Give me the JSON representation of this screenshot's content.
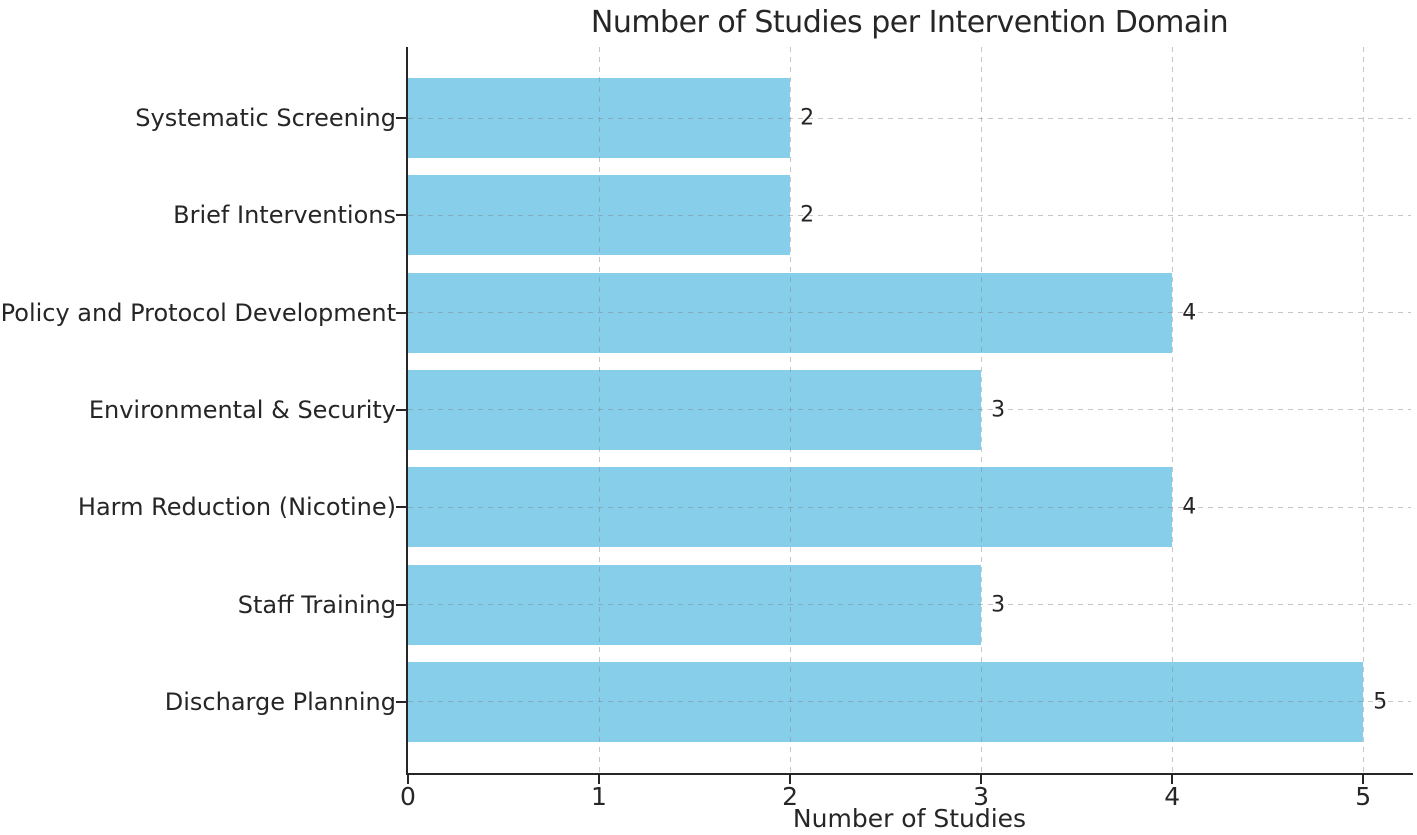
{
  "chart_data": {
    "type": "bar",
    "orientation": "horizontal",
    "title": "Number of Studies per Intervention Domain",
    "xlabel": "Number of Studies",
    "ylabel": "",
    "categories": [
      "Systematic Screening",
      "Brief Interventions",
      "Policy and Protocol Development",
      "Environmental & Security",
      "Harm Reduction (Nicotine)",
      "Staff Training",
      "Discharge Planning"
    ],
    "values": [
      2,
      2,
      4,
      3,
      4,
      3,
      5
    ],
    "bar_value_labels": [
      "2",
      "2",
      "4",
      "3",
      "4",
      "3",
      "5"
    ],
    "xticks": [
      "0",
      "1",
      "2",
      "3",
      "4",
      "5"
    ],
    "xtick_values": [
      0,
      1,
      2,
      3,
      4,
      5
    ],
    "xlim": [
      0,
      5.25
    ],
    "grid": {
      "visible": true,
      "style": "dashed",
      "axes": "both"
    },
    "legend": null,
    "colors": {
      "bar": "#87CEEB",
      "axis": "#262626",
      "text": "#262626",
      "grid": "#c8c8c8",
      "background": "#ffffff"
    }
  }
}
